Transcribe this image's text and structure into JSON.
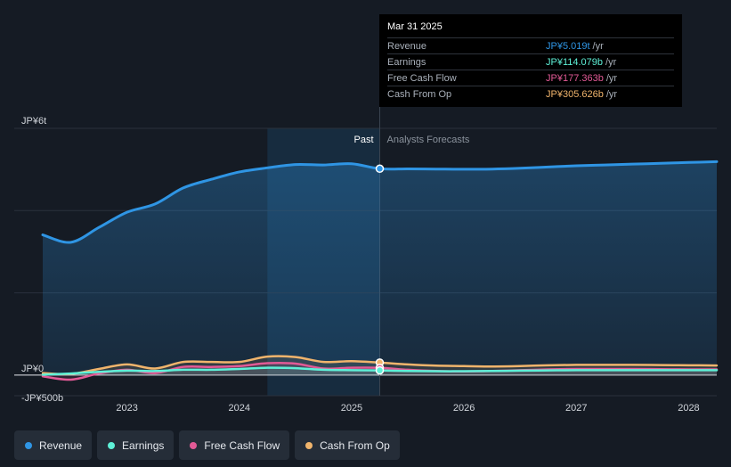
{
  "tooltip": {
    "date": "Mar 31 2025",
    "rows": [
      {
        "label": "Revenue",
        "value": "JP¥5.019t",
        "unit": "/yr",
        "color": "#2f95e4"
      },
      {
        "label": "Earnings",
        "value": "JP¥114.079b",
        "unit": "/yr",
        "color": "#5ef0d7"
      },
      {
        "label": "Free Cash Flow",
        "value": "JP¥177.363b",
        "unit": "/yr",
        "color": "#e25a96"
      },
      {
        "label": "Cash From Op",
        "value": "JP¥305.626b",
        "unit": "/yr",
        "color": "#f0b46c"
      }
    ]
  },
  "legend": [
    {
      "label": "Revenue",
      "color": "#2f95e4"
    },
    {
      "label": "Earnings",
      "color": "#5ef0d7"
    },
    {
      "label": "Free Cash Flow",
      "color": "#e25a96"
    },
    {
      "label": "Cash From Op",
      "color": "#f0b46c"
    }
  ],
  "chart_data": {
    "type": "line",
    "ylim": [
      -500,
      6000
    ],
    "y_tick_labels": [
      {
        "value": 6000,
        "label": "JP¥6t"
      },
      {
        "value": 0,
        "label": "JP¥0"
      },
      {
        "value": -500,
        "label": "-JP¥500b"
      }
    ],
    "xlim": [
      2022.25,
      2028.25
    ],
    "x_ticks": [
      {
        "value": 2023,
        "label": "2023"
      },
      {
        "value": 2024,
        "label": "2024"
      },
      {
        "value": 2025,
        "label": "2025"
      },
      {
        "value": 2026,
        "label": "2026"
      },
      {
        "value": 2027,
        "label": "2027"
      },
      {
        "value": 2028,
        "label": "2028"
      }
    ],
    "past_label": "Past",
    "forecast_label": "Analysts Forecasts",
    "past_start": 2024.25,
    "divider": 2025.25,
    "highlight_x": 2025.25,
    "series": [
      {
        "name": "Revenue",
        "color": "#2f95e4",
        "area": true,
        "x": [
          2022.25,
          2022.5,
          2022.75,
          2023.0,
          2023.25,
          2023.5,
          2023.75,
          2024.0,
          2024.25,
          2024.5,
          2024.75,
          2025.0,
          2025.25,
          2025.5,
          2025.75,
          2026.0,
          2026.25,
          2026.5,
          2026.75,
          2027.0,
          2027.25,
          2027.5,
          2027.75,
          2028.0,
          2028.25
        ],
        "values": [
          3410,
          3230,
          3590,
          3960,
          4160,
          4550,
          4760,
          4940,
          5040,
          5120,
          5110,
          5140,
          5019,
          5015,
          5010,
          5005,
          5010,
          5030,
          5060,
          5090,
          5110,
          5130,
          5150,
          5170,
          5190
        ]
      },
      {
        "name": "Cash From Op",
        "color": "#f0b46c",
        "area": false,
        "x": [
          2022.25,
          2022.5,
          2022.75,
          2023.0,
          2023.25,
          2023.5,
          2023.75,
          2024.0,
          2024.25,
          2024.5,
          2024.75,
          2025.0,
          2025.25,
          2025.5,
          2025.75,
          2026.0,
          2026.25,
          2026.5,
          2026.75,
          2027.0,
          2027.25,
          2027.5,
          2027.75,
          2028.0,
          2028.25
        ],
        "values": [
          50,
          30,
          150,
          260,
          160,
          320,
          320,
          320,
          450,
          440,
          320,
          340,
          305.6,
          260,
          230,
          220,
          210,
          220,
          240,
          250,
          250,
          250,
          245,
          240,
          235
        ]
      },
      {
        "name": "Free Cash Flow",
        "color": "#e25a96",
        "area": false,
        "x": [
          2022.25,
          2022.5,
          2022.75,
          2023.0,
          2023.25,
          2023.5,
          2023.75,
          2024.0,
          2024.25,
          2024.5,
          2024.75,
          2025.0,
          2025.25,
          2025.5,
          2025.75,
          2026.0,
          2026.25,
          2026.5,
          2026.75,
          2027.0,
          2027.25,
          2027.5,
          2027.75,
          2028.0,
          2028.25
        ],
        "values": [
          -30,
          -110,
          40,
          130,
          50,
          200,
          200,
          220,
          290,
          280,
          160,
          180,
          177.4,
          130,
          100,
          90,
          100,
          120,
          140,
          150,
          150,
          150,
          145,
          140,
          140
        ]
      },
      {
        "name": "Earnings",
        "color": "#5ef0d7",
        "area": false,
        "x": [
          2022.25,
          2022.5,
          2022.75,
          2023.0,
          2023.25,
          2023.5,
          2023.75,
          2024.0,
          2024.25,
          2024.5,
          2024.75,
          2025.0,
          2025.25,
          2025.5,
          2025.75,
          2026.0,
          2026.25,
          2026.5,
          2026.75,
          2027.0,
          2027.25,
          2027.5,
          2027.75,
          2028.0,
          2028.25
        ],
        "values": [
          10,
          40,
          80,
          110,
          100,
          130,
          130,
          150,
          180,
          170,
          130,
          120,
          114.1,
          100,
          95,
          95,
          100,
          110,
          115,
          120,
          120,
          120,
          120,
          120,
          120
        ]
      }
    ]
  }
}
